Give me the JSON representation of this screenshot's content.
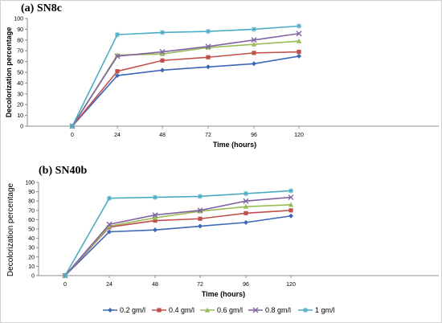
{
  "chart_data": [
    {
      "type": "line",
      "title": "(a) SN8c",
      "xlabel": "Time (hours)",
      "ylabel": "Decolorization percentage",
      "x": [
        0,
        24,
        48,
        72,
        96,
        120
      ],
      "xticks": [
        "0",
        "24",
        "48",
        "72",
        "96",
        "120"
      ],
      "ylim": [
        0,
        100
      ],
      "yticks": [
        0,
        10,
        20,
        30,
        40,
        50,
        60,
        70,
        80,
        90,
        100
      ],
      "grid": false,
      "series": [
        {
          "name": "0.2 gm/l",
          "color": "#3c68b8",
          "marker": "diamond",
          "values": [
            0,
            47,
            52,
            55,
            58,
            65
          ]
        },
        {
          "name": "0.4 gm/l",
          "color": "#c0504d",
          "marker": "square",
          "values": [
            0,
            51,
            61,
            64,
            68,
            69
          ]
        },
        {
          "name": "0.6 gm/l",
          "color": "#9bbb59",
          "marker": "triangle",
          "values": [
            0,
            66,
            67,
            73,
            76,
            79
          ]
        },
        {
          "name": "0.8 gm/l",
          "color": "#8064a2",
          "marker": "x",
          "values": [
            0,
            65,
            69,
            74,
            80,
            86
          ]
        },
        {
          "name": "1 gm/l",
          "color": "#4bacc6",
          "marker": "star",
          "values": [
            0,
            85,
            87,
            88,
            90,
            93
          ]
        }
      ]
    },
    {
      "type": "line",
      "title": "(b) SN40b",
      "xlabel": "Time (hours)",
      "ylabel": "Decolorization percentage",
      "x": [
        0,
        24,
        48,
        72,
        96,
        120
      ],
      "xticks": [
        "0",
        "24",
        "48",
        "72",
        "96",
        "120"
      ],
      "ylim": [
        0,
        100
      ],
      "yticks": [
        0,
        10,
        20,
        30,
        40,
        50,
        60,
        70,
        80,
        90,
        100
      ],
      "grid": false,
      "series": [
        {
          "name": "0.2 gm/l",
          "color": "#3c68b8",
          "marker": "diamond",
          "values": [
            0,
            47,
            49,
            53,
            57,
            64
          ]
        },
        {
          "name": "0.4 gm/l",
          "color": "#c0504d",
          "marker": "square",
          "values": [
            0,
            52,
            59,
            61,
            67,
            70
          ]
        },
        {
          "name": "0.6 gm/l",
          "color": "#9bbb59",
          "marker": "triangle",
          "values": [
            0,
            53,
            62,
            69,
            74,
            76
          ]
        },
        {
          "name": "0.8 gm/l",
          "color": "#8064a2",
          "marker": "x",
          "values": [
            0,
            55,
            65,
            70,
            80,
            84
          ]
        },
        {
          "name": "1 gm/l",
          "color": "#4bacc6",
          "marker": "star",
          "values": [
            0,
            83,
            84,
            85,
            88,
            91
          ]
        }
      ]
    }
  ],
  "legend": {
    "placement": "bottom",
    "items": [
      {
        "label": "0.2 gm/l",
        "color": "#3c68b8",
        "marker": "diamond"
      },
      {
        "label": "0.4 gm/l",
        "color": "#c0504d",
        "marker": "square"
      },
      {
        "label": "0.6 gm/l",
        "color": "#9bbb59",
        "marker": "triangle"
      },
      {
        "label": "0.8 gm/l",
        "color": "#8064a2",
        "marker": "x"
      },
      {
        "label": "1 gm/l",
        "color": "#4bacc6",
        "marker": "star"
      }
    ]
  }
}
